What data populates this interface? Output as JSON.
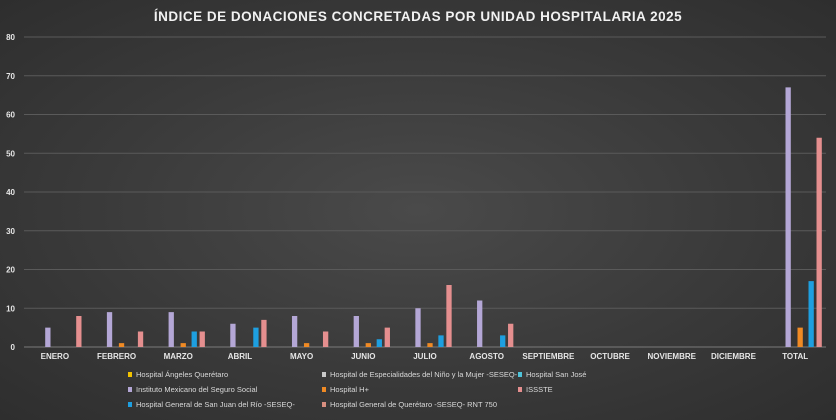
{
  "chart_data": {
    "type": "bar",
    "title": "ÍNDICE DE DONACIONES CONCRETADAS POR UNIDAD HOSPITALARIA 2025",
    "xlabel": "",
    "ylabel": "",
    "ylim": [
      0,
      80
    ],
    "yticks": [
      0,
      10,
      20,
      30,
      40,
      50,
      60,
      70,
      80
    ],
    "grid": true,
    "legend_position": "bottom",
    "categories": [
      "ENERO",
      "FEBRERO",
      "MARZO",
      "ABRIL",
      "MAYO",
      "JUNIO",
      "JULIO",
      "AGOSTO",
      "SEPTIEMBRE",
      "OCTUBRE",
      "NOVIEMBRE",
      "DICIEMBRE",
      "TOTAL"
    ],
    "series": [
      {
        "name": "Hospital Ángeles Querétaro",
        "color": "#f2c200",
        "values": [
          0,
          0,
          0,
          0,
          0,
          0,
          0,
          0,
          0,
          0,
          0,
          0,
          0
        ]
      },
      {
        "name": "Instituto Mexicano del Seguro Social",
        "color": "#b4a7d6",
        "values": [
          5,
          9,
          9,
          6,
          8,
          8,
          10,
          12,
          0,
          0,
          0,
          0,
          67
        ]
      },
      {
        "name": "Hospital de Especialidades del Niño y la Mujer -SESEQ-",
        "color": "#c9c9c9",
        "values": [
          0,
          0,
          0,
          0,
          0,
          0,
          0,
          0,
          0,
          0,
          0,
          0,
          0
        ]
      },
      {
        "name": "Hospital H+",
        "color": "#f08a24",
        "values": [
          0,
          1,
          1,
          0,
          1,
          1,
          1,
          0,
          0,
          0,
          0,
          0,
          5
        ]
      },
      {
        "name": "Hospital San José",
        "color": "#4fc3d9",
        "values": [
          0,
          0,
          0,
          0,
          0,
          0,
          0,
          0,
          0,
          0,
          0,
          0,
          0
        ]
      },
      {
        "name": "Hospital General de San Juan del Río -SESEQ-",
        "color": "#1e9fe0",
        "values": [
          0,
          0,
          4,
          5,
          0,
          2,
          3,
          3,
          0,
          0,
          0,
          0,
          17
        ]
      },
      {
        "name": "ISSSTE",
        "color": "#e58f8f",
        "values": [
          8,
          4,
          4,
          7,
          4,
          5,
          16,
          6,
          0,
          0,
          0,
          0,
          54
        ]
      },
      {
        "name": "Hospital General de Querétaro -SESEQ- RNT 750",
        "color": "#d98f80",
        "values": [
          0,
          0,
          0,
          0,
          0,
          0,
          0,
          0,
          0,
          0,
          0,
          0,
          0
        ]
      }
    ]
  }
}
